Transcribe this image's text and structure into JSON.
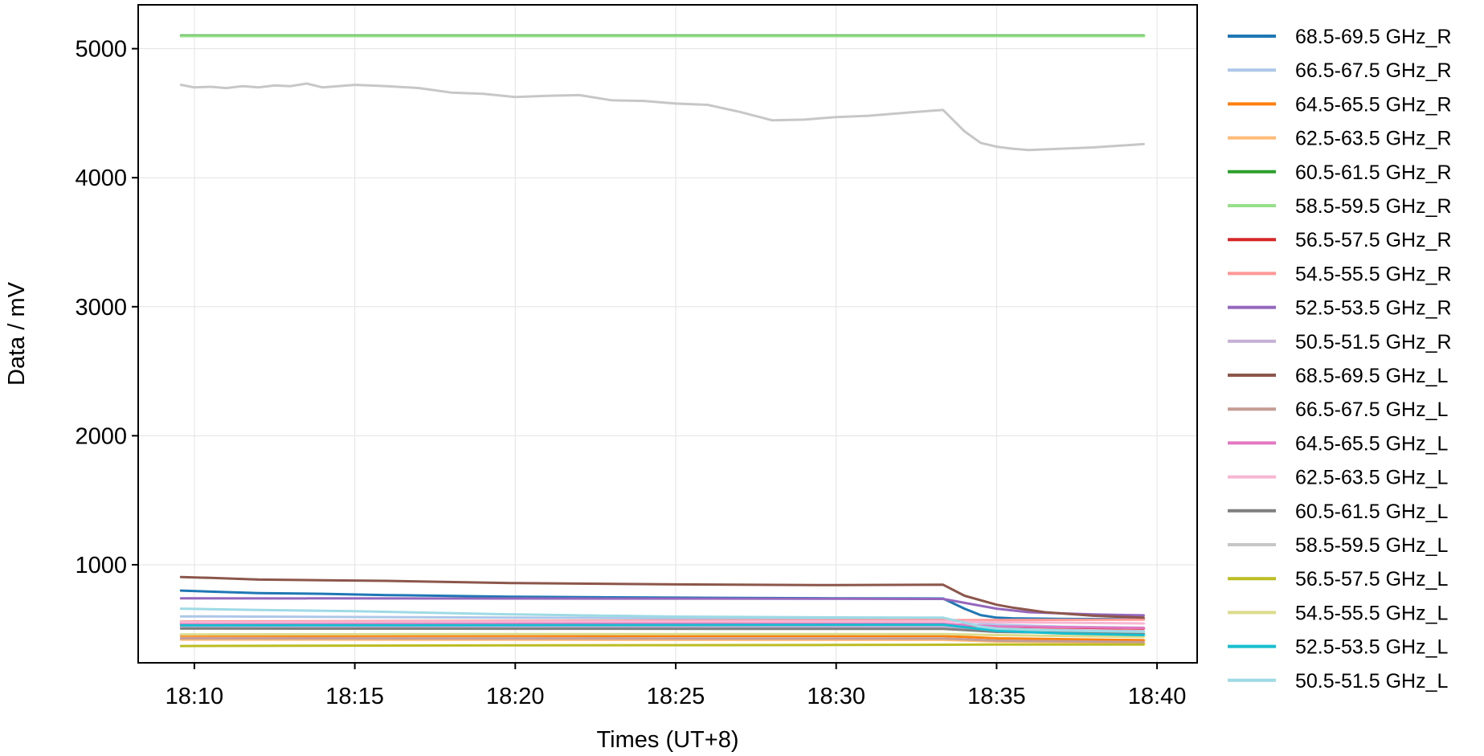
{
  "chart_data": {
    "type": "line",
    "title": "",
    "xlabel": "Times (UT+8)",
    "ylabel": "Data / mV",
    "x_unit": "HH:MM (UT+8)",
    "xlim": [
      "18:08:15",
      "18:41:15"
    ],
    "ylim": [
      240,
      5340
    ],
    "x_ticks": [
      "18:10",
      "18:15",
      "18:20",
      "18:25",
      "18:30",
      "18:35",
      "18:40"
    ],
    "y_ticks": [
      1000,
      2000,
      3000,
      4000,
      5000
    ],
    "grid": true,
    "legend_position": "outside-right",
    "series": [
      {
        "name": "68.5-69.5 GHz_R",
        "color": "#1f77b4",
        "points": [
          [
            "18:09:35",
            800
          ],
          [
            "18:10:30",
            792
          ],
          [
            "18:12:00",
            780
          ],
          [
            "18:14:00",
            775
          ],
          [
            "18:16:00",
            765
          ],
          [
            "18:20:00",
            752
          ],
          [
            "18:25:00",
            745
          ],
          [
            "18:30:00",
            740
          ],
          [
            "18:33:20",
            738
          ],
          [
            "18:34:00",
            660
          ],
          [
            "18:34:30",
            610
          ],
          [
            "18:35:00",
            590
          ],
          [
            "18:35:30",
            585
          ],
          [
            "18:37:00",
            580
          ],
          [
            "18:39:35",
            578
          ]
        ]
      },
      {
        "name": "66.5-67.5 GHz_R",
        "color": "#aec7e8",
        "points": [
          [
            "18:09:35",
            600
          ],
          [
            "18:15:00",
            595
          ],
          [
            "18:20:00",
            590
          ],
          [
            "18:25:00",
            585
          ],
          [
            "18:30:00",
            582
          ],
          [
            "18:33:20",
            580
          ],
          [
            "18:35:00",
            535
          ],
          [
            "18:37:00",
            520
          ],
          [
            "18:39:35",
            512
          ]
        ]
      },
      {
        "name": "64.5-65.5 GHz_R",
        "color": "#ff7f0e",
        "points": [
          [
            "18:09:35",
            450
          ],
          [
            "18:20:00",
            449
          ],
          [
            "18:33:20",
            448
          ],
          [
            "18:35:00",
            430
          ],
          [
            "18:39:35",
            415
          ]
        ]
      },
      {
        "name": "62.5-63.5 GHz_R",
        "color": "#ffbb78",
        "points": [
          [
            "18:09:35",
            420
          ],
          [
            "18:20:00",
            419
          ],
          [
            "18:33:20",
            418
          ],
          [
            "18:35:00",
            405
          ],
          [
            "18:39:35",
            395
          ]
        ]
      },
      {
        "name": "60.5-61.5 GHz_R",
        "color": "#2ca02c",
        "points": [
          [
            "18:09:35",
            5102
          ],
          [
            "18:39:35",
            5102
          ]
        ]
      },
      {
        "name": "58.5-59.5 GHz_R",
        "color": "#98df8a",
        "points": [
          [
            "18:09:35",
            5097
          ],
          [
            "18:39:35",
            5097
          ]
        ]
      },
      {
        "name": "56.5-57.5 GHz_R",
        "color": "#d62728",
        "points": [
          [
            "18:09:35",
            540
          ],
          [
            "18:20:00",
            539
          ],
          [
            "18:33:20",
            538
          ],
          [
            "18:35:00",
            520
          ],
          [
            "18:39:35",
            505
          ]
        ]
      },
      {
        "name": "54.5-55.5 GHz_R",
        "color": "#ff9896",
        "points": [
          [
            "18:09:35",
            560
          ],
          [
            "18:20:00",
            565
          ],
          [
            "18:33:20",
            570
          ],
          [
            "18:35:00",
            572
          ],
          [
            "18:39:35",
            575
          ]
        ]
      },
      {
        "name": "52.5-53.5 GHz_R",
        "color": "#9467bd",
        "points": [
          [
            "18:09:35",
            740
          ],
          [
            "18:20:00",
            738
          ],
          [
            "18:30:00",
            736
          ],
          [
            "18:33:20",
            735
          ],
          [
            "18:35:00",
            660
          ],
          [
            "18:36:00",
            632
          ],
          [
            "18:38:00",
            615
          ],
          [
            "18:39:35",
            608
          ]
        ]
      },
      {
        "name": "50.5-51.5 GHz_R",
        "color": "#c5b0d5",
        "points": [
          [
            "18:09:35",
            520
          ],
          [
            "18:20:00",
            519
          ],
          [
            "18:33:20",
            518
          ],
          [
            "18:35:00",
            500
          ],
          [
            "18:39:35",
            485
          ]
        ]
      },
      {
        "name": "68.5-69.5 GHz_L",
        "color": "#8c564b",
        "points": [
          [
            "18:09:35",
            905
          ],
          [
            "18:10:30",
            898
          ],
          [
            "18:12:00",
            885
          ],
          [
            "18:14:00",
            880
          ],
          [
            "18:16:00",
            875
          ],
          [
            "18:20:00",
            858
          ],
          [
            "18:25:00",
            848
          ],
          [
            "18:30:00",
            842
          ],
          [
            "18:33:20",
            845
          ],
          [
            "18:34:00",
            760
          ],
          [
            "18:35:00",
            690
          ],
          [
            "18:35:30",
            668
          ],
          [
            "18:36:30",
            632
          ],
          [
            "18:38:00",
            605
          ],
          [
            "18:39:35",
            590
          ]
        ]
      },
      {
        "name": "66.5-67.5 GHz_L",
        "color": "#c49c94",
        "points": [
          [
            "18:09:35",
            430
          ],
          [
            "18:20:00",
            429
          ],
          [
            "18:33:20",
            428
          ],
          [
            "18:35:00",
            412
          ],
          [
            "18:39:35",
            400
          ]
        ]
      },
      {
        "name": "64.5-65.5 GHz_L",
        "color": "#e377c2",
        "points": [
          [
            "18:09:35",
            545
          ],
          [
            "18:20:00",
            544
          ],
          [
            "18:33:20",
            542
          ],
          [
            "18:35:00",
            522
          ],
          [
            "18:39:35",
            510
          ]
        ]
      },
      {
        "name": "62.5-63.5 GHz_L",
        "color": "#f7b6d2",
        "points": [
          [
            "18:09:35",
            555
          ],
          [
            "18:20:00",
            560
          ],
          [
            "18:33:20",
            562
          ],
          [
            "18:35:00",
            555
          ],
          [
            "18:39:35",
            545
          ]
        ]
      },
      {
        "name": "60.5-61.5 GHz_L",
        "color": "#7f7f7f",
        "points": [
          [
            "18:09:35",
            505
          ],
          [
            "18:20:00",
            504
          ],
          [
            "18:33:20",
            503
          ],
          [
            "18:35:00",
            480
          ],
          [
            "18:39:35",
            465
          ]
        ]
      },
      {
        "name": "58.5-59.5 GHz_L",
        "color": "#c7c7c7",
        "points": [
          [
            "18:09:35",
            4720
          ],
          [
            "18:10:00",
            4700
          ],
          [
            "18:10:30",
            4705
          ],
          [
            "18:11:00",
            4695
          ],
          [
            "18:11:30",
            4710
          ],
          [
            "18:12:00",
            4700
          ],
          [
            "18:12:30",
            4715
          ],
          [
            "18:13:00",
            4710
          ],
          [
            "18:13:30",
            4730
          ],
          [
            "18:14:00",
            4700
          ],
          [
            "18:15:00",
            4720
          ],
          [
            "18:16:00",
            4710
          ],
          [
            "18:17:00",
            4695
          ],
          [
            "18:18:00",
            4660
          ],
          [
            "18:19:00",
            4650
          ],
          [
            "18:20:00",
            4625
          ],
          [
            "18:21:00",
            4635
          ],
          [
            "18:22:00",
            4640
          ],
          [
            "18:23:00",
            4600
          ],
          [
            "18:24:00",
            4595
          ],
          [
            "18:25:00",
            4575
          ],
          [
            "18:26:00",
            4565
          ],
          [
            "18:27:00",
            4510
          ],
          [
            "18:28:00",
            4445
          ],
          [
            "18:29:00",
            4450
          ],
          [
            "18:30:00",
            4470
          ],
          [
            "18:31:00",
            4480
          ],
          [
            "18:32:00",
            4500
          ],
          [
            "18:33:00",
            4520
          ],
          [
            "18:33:20",
            4525
          ],
          [
            "18:34:00",
            4360
          ],
          [
            "18:34:30",
            4270
          ],
          [
            "18:35:00",
            4240
          ],
          [
            "18:35:30",
            4225
          ],
          [
            "18:36:00",
            4215
          ],
          [
            "18:37:00",
            4225
          ],
          [
            "18:38:00",
            4235
          ],
          [
            "18:39:35",
            4260
          ]
        ]
      },
      {
        "name": "56.5-57.5 GHz_L",
        "color": "#bcbd22",
        "points": [
          [
            "18:09:35",
            370
          ],
          [
            "18:20:00",
            375
          ],
          [
            "18:30:00",
            378
          ],
          [
            "18:33:20",
            380
          ],
          [
            "18:35:00",
            382
          ],
          [
            "18:39:35",
            382
          ]
        ]
      },
      {
        "name": "54.5-55.5 GHz_L",
        "color": "#dbdb8d",
        "points": [
          [
            "18:09:35",
            460
          ],
          [
            "18:20:00",
            462
          ],
          [
            "18:33:20",
            463
          ],
          [
            "18:35:00",
            455
          ],
          [
            "18:39:35",
            440
          ]
        ]
      },
      {
        "name": "52.5-53.5 GHz_L",
        "color": "#17becf",
        "points": [
          [
            "18:09:35",
            530
          ],
          [
            "18:20:00",
            532
          ],
          [
            "18:33:20",
            535
          ],
          [
            "18:35:00",
            488
          ],
          [
            "18:37:00",
            468
          ],
          [
            "18:39:35",
            455
          ]
        ]
      },
      {
        "name": "50.5-51.5 GHz_L",
        "color": "#9edae5",
        "points": [
          [
            "18:09:35",
            660
          ],
          [
            "18:12:00",
            650
          ],
          [
            "18:15:00",
            640
          ],
          [
            "18:20:00",
            615
          ],
          [
            "18:25:00",
            598
          ],
          [
            "18:30:00",
            592
          ],
          [
            "18:33:20",
            590
          ],
          [
            "18:34:30",
            520
          ],
          [
            "18:35:00",
            505
          ],
          [
            "18:37:00",
            490
          ],
          [
            "18:39:35",
            480
          ]
        ]
      }
    ]
  }
}
